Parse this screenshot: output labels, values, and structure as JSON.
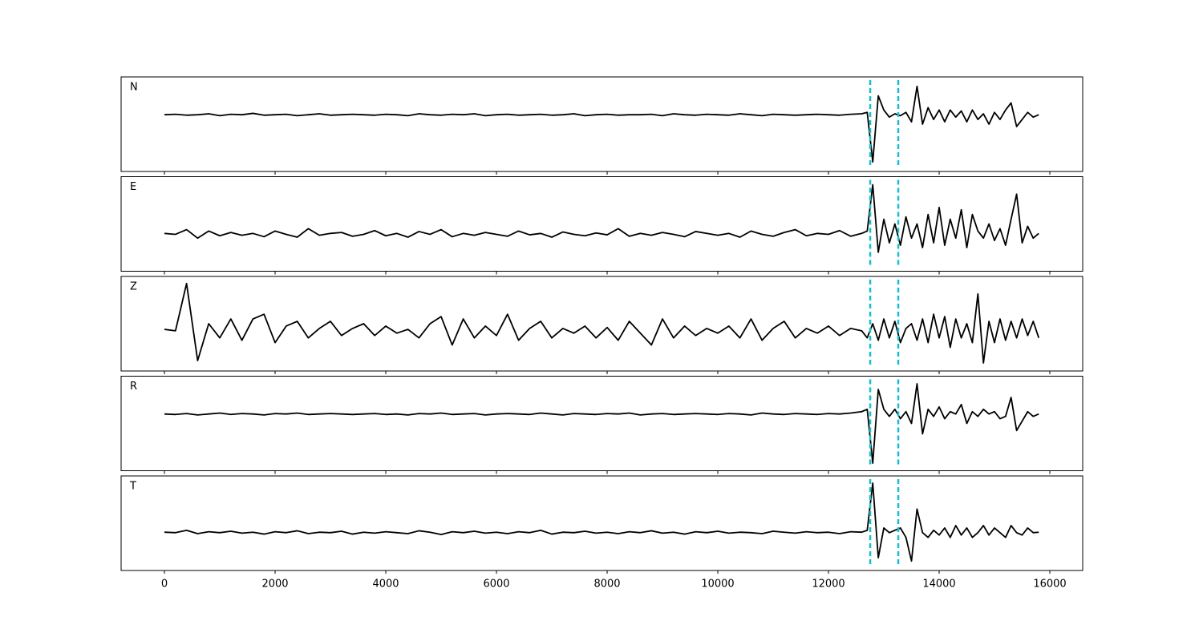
{
  "chart_data": {
    "type": "line",
    "x": [
      0,
      200,
      400,
      600,
      800,
      1000,
      1200,
      1400,
      1600,
      1800,
      2000,
      2200,
      2400,
      2600,
      2800,
      3000,
      3200,
      3400,
      3600,
      3800,
      4000,
      4200,
      4400,
      4600,
      4800,
      5000,
      5200,
      5400,
      5600,
      5800,
      6000,
      6200,
      6400,
      6600,
      6800,
      7000,
      7200,
      7400,
      7600,
      7800,
      8000,
      8200,
      8400,
      8600,
      8800,
      9000,
      9200,
      9400,
      9600,
      9800,
      10000,
      10200,
      10400,
      10600,
      10800,
      11000,
      11200,
      11400,
      11600,
      11800,
      12000,
      12200,
      12400,
      12600,
      12700,
      12800,
      12900,
      13000,
      13100,
      13200,
      13300,
      13400,
      13500,
      13600,
      13700,
      13800,
      13900,
      14000,
      14100,
      14200,
      14300,
      14400,
      14500,
      14600,
      14700,
      14800,
      14900,
      15000,
      15100,
      15200,
      15300,
      15400,
      15500,
      15600,
      15700,
      15800
    ],
    "series": [
      {
        "name": "N",
        "color": "#000000",
        "values": [
          0.2,
          0.21,
          0.19,
          0.2,
          0.22,
          0.18,
          0.21,
          0.2,
          0.23,
          0.19,
          0.2,
          0.21,
          0.18,
          0.2,
          0.22,
          0.19,
          0.2,
          0.21,
          0.2,
          0.19,
          0.21,
          0.2,
          0.18,
          0.22,
          0.2,
          0.19,
          0.21,
          0.2,
          0.22,
          0.18,
          0.2,
          0.21,
          0.19,
          0.2,
          0.21,
          0.19,
          0.2,
          0.22,
          0.18,
          0.2,
          0.21,
          0.19,
          0.2,
          0.2,
          0.21,
          0.18,
          0.22,
          0.2,
          0.19,
          0.21,
          0.2,
          0.19,
          0.22,
          0.2,
          0.18,
          0.21,
          0.2,
          0.19,
          0.2,
          0.21,
          0.2,
          0.19,
          0.21,
          0.22,
          0.25,
          -0.8,
          0.6,
          0.3,
          0.15,
          0.22,
          0.18,
          0.25,
          0.05,
          0.8,
          0.0,
          0.35,
          0.1,
          0.3,
          0.05,
          0.3,
          0.15,
          0.28,
          0.05,
          0.3,
          0.1,
          0.22,
          0.0,
          0.25,
          0.1,
          0.3,
          0.45,
          -0.05,
          0.1,
          0.25,
          0.15,
          0.2
        ]
      },
      {
        "name": "E",
        "color": "#000000",
        "values": [
          -0.2,
          -0.22,
          -0.12,
          -0.3,
          -0.15,
          -0.25,
          -0.18,
          -0.24,
          -0.2,
          -0.27,
          -0.15,
          -0.22,
          -0.28,
          -0.1,
          -0.24,
          -0.2,
          -0.18,
          -0.26,
          -0.22,
          -0.14,
          -0.25,
          -0.2,
          -0.28,
          -0.16,
          -0.22,
          -0.12,
          -0.27,
          -0.2,
          -0.24,
          -0.18,
          -0.22,
          -0.26,
          -0.15,
          -0.23,
          -0.2,
          -0.28,
          -0.17,
          -0.22,
          -0.25,
          -0.19,
          -0.23,
          -0.1,
          -0.26,
          -0.2,
          -0.24,
          -0.18,
          -0.22,
          -0.27,
          -0.16,
          -0.2,
          -0.24,
          -0.2,
          -0.28,
          -0.15,
          -0.22,
          -0.26,
          -0.18,
          -0.12,
          -0.25,
          -0.2,
          -0.22,
          -0.14,
          -0.26,
          -0.2,
          -0.15,
          0.83,
          -0.6,
          0.1,
          -0.4,
          0.0,
          -0.45,
          0.15,
          -0.3,
          0.0,
          -0.5,
          0.2,
          -0.4,
          0.35,
          -0.45,
          0.1,
          -0.3,
          0.3,
          -0.5,
          0.2,
          -0.15,
          -0.3,
          0.0,
          -0.35,
          -0.1,
          -0.45,
          0.1,
          0.63,
          -0.4,
          -0.05,
          -0.3,
          -0.2
        ]
      },
      {
        "name": "Z",
        "color": "#000000",
        "values": [
          -0.12,
          -0.15,
          0.85,
          -0.78,
          0.0,
          -0.3,
          0.1,
          -0.35,
          0.1,
          0.2,
          -0.4,
          -0.05,
          0.05,
          -0.3,
          -0.1,
          0.05,
          -0.25,
          -0.1,
          0.0,
          -0.25,
          -0.05,
          -0.2,
          -0.12,
          -0.3,
          0.0,
          0.15,
          -0.45,
          0.1,
          -0.3,
          -0.05,
          -0.25,
          0.2,
          -0.35,
          -0.1,
          0.05,
          -0.3,
          -0.1,
          -0.2,
          -0.05,
          -0.3,
          -0.08,
          -0.35,
          0.05,
          -0.2,
          -0.45,
          0.1,
          -0.3,
          -0.05,
          -0.25,
          -0.1,
          -0.2,
          -0.05,
          -0.3,
          0.1,
          -0.35,
          -0.1,
          0.05,
          -0.3,
          -0.1,
          -0.2,
          -0.05,
          -0.25,
          -0.1,
          -0.15,
          -0.3,
          0.0,
          -0.35,
          0.1,
          -0.3,
          0.05,
          -0.4,
          -0.1,
          0.0,
          -0.35,
          0.1,
          -0.4,
          0.2,
          -0.3,
          0.15,
          -0.5,
          0.1,
          -0.3,
          0.0,
          -0.4,
          0.63,
          -0.83,
          0.05,
          -0.4,
          0.1,
          -0.35,
          0.05,
          -0.3,
          0.1,
          -0.25,
          0.05,
          -0.3
        ]
      },
      {
        "name": "R",
        "color": "#000000",
        "values": [
          0.2,
          0.19,
          0.21,
          0.18,
          0.2,
          0.22,
          0.19,
          0.21,
          0.2,
          0.18,
          0.21,
          0.2,
          0.22,
          0.19,
          0.2,
          0.21,
          0.2,
          0.19,
          0.2,
          0.21,
          0.19,
          0.2,
          0.18,
          0.21,
          0.2,
          0.22,
          0.19,
          0.2,
          0.21,
          0.18,
          0.2,
          0.21,
          0.2,
          0.19,
          0.22,
          0.2,
          0.18,
          0.21,
          0.2,
          0.19,
          0.21,
          0.2,
          0.22,
          0.18,
          0.2,
          0.21,
          0.19,
          0.2,
          0.21,
          0.2,
          0.19,
          0.21,
          0.2,
          0.18,
          0.22,
          0.2,
          0.19,
          0.21,
          0.2,
          0.19,
          0.21,
          0.2,
          0.22,
          0.25,
          0.3,
          -0.84,
          0.72,
          0.3,
          0.15,
          0.3,
          0.1,
          0.25,
          0.0,
          0.84,
          -0.22,
          0.3,
          0.15,
          0.35,
          0.1,
          0.25,
          0.2,
          0.4,
          0.0,
          0.25,
          0.15,
          0.3,
          0.2,
          0.25,
          0.1,
          0.15,
          0.55,
          -0.15,
          0.05,
          0.25,
          0.15,
          0.2
        ]
      },
      {
        "name": "T",
        "color": "#000000",
        "values": [
          -0.19,
          -0.2,
          -0.15,
          -0.22,
          -0.18,
          -0.2,
          -0.17,
          -0.21,
          -0.19,
          -0.23,
          -0.18,
          -0.2,
          -0.16,
          -0.22,
          -0.19,
          -0.2,
          -0.17,
          -0.23,
          -0.19,
          -0.21,
          -0.18,
          -0.2,
          -0.22,
          -0.16,
          -0.19,
          -0.24,
          -0.18,
          -0.2,
          -0.17,
          -0.21,
          -0.19,
          -0.22,
          -0.18,
          -0.2,
          -0.15,
          -0.23,
          -0.19,
          -0.2,
          -0.17,
          -0.21,
          -0.19,
          -0.22,
          -0.18,
          -0.2,
          -0.16,
          -0.21,
          -0.19,
          -0.23,
          -0.18,
          -0.2,
          -0.17,
          -0.21,
          -0.19,
          -0.2,
          -0.22,
          -0.17,
          -0.19,
          -0.21,
          -0.18,
          -0.2,
          -0.19,
          -0.22,
          -0.18,
          -0.19,
          -0.15,
          0.85,
          -0.73,
          -0.1,
          -0.2,
          -0.15,
          -0.1,
          -0.3,
          -0.8,
          0.3,
          -0.2,
          -0.3,
          -0.15,
          -0.25,
          -0.1,
          -0.3,
          -0.05,
          -0.25,
          -0.1,
          -0.3,
          -0.2,
          -0.05,
          -0.25,
          -0.1,
          -0.2,
          -0.3,
          -0.05,
          -0.2,
          -0.25,
          -0.1,
          -0.2,
          -0.19
        ]
      }
    ],
    "xlim": [
      -783,
      16594
    ],
    "xticks": [
      0,
      2000,
      4000,
      6000,
      8000,
      10000,
      12000,
      14000,
      16000
    ],
    "ylim": [
      -1,
      1
    ],
    "vlines": [
      12754,
      13261
    ],
    "vline_color": "#17becf"
  }
}
